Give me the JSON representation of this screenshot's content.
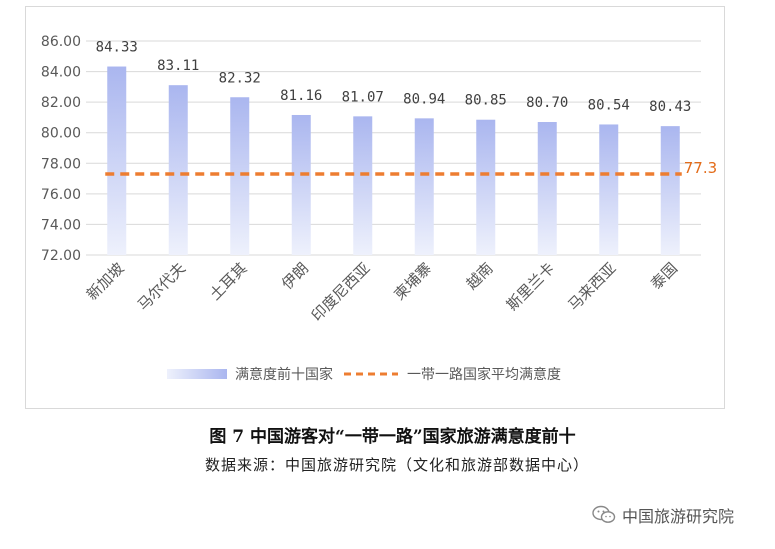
{
  "chart_data": {
    "type": "bar",
    "categories": [
      "新加坡",
      "马尔代夫",
      "土耳其",
      "伊朗",
      "印度尼西亚",
      "柬埔寨",
      "越南",
      "斯里兰卡",
      "马来西亚",
      "泰国"
    ],
    "series": [
      {
        "name": "满意度前十国家",
        "values": [
          84.33,
          83.11,
          82.32,
          81.16,
          81.07,
          80.94,
          80.85,
          80.7,
          80.54,
          80.43
        ],
        "labels": [
          "84.33",
          "83.11",
          "82.32",
          "81.16",
          "81.07",
          "80.94",
          "80.85",
          "80.70",
          "80.54",
          "80.43"
        ]
      },
      {
        "name": "一带一路国家平均满意度",
        "type": "line",
        "value": 77.3,
        "label": "77.3"
      }
    ],
    "ylim": [
      72,
      86
    ],
    "yticks": [
      "72.00",
      "74.00",
      "76.00",
      "78.00",
      "80.00",
      "82.00",
      "84.00",
      "86.00"
    ],
    "grid": true,
    "legend_position": "bottom",
    "colors": {
      "bar_top": "#aab6ef",
      "bar_bottom": "#eef1fc",
      "avg_line": "#ed7d31",
      "gridline": "#d9d9d9"
    }
  },
  "caption": "图 7  中国游客对“一带一路”国家旅游满意度前十",
  "source": "数据来源：中国旅游研究院（文化和旅游部数据中心）",
  "watermark": {
    "icon": "wechat-icon",
    "text": "中国旅游研究院"
  }
}
